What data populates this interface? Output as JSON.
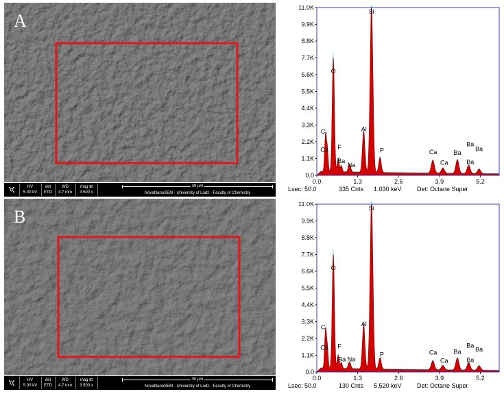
{
  "figure": {
    "panels": [
      {
        "label": "A",
        "sem": {
          "hv_label": "HV",
          "hv": "5.00 kV",
          "det_label": "det",
          "det": "ETD",
          "wd_label": "WD",
          "wd": "4.7 mm",
          "mag_label": "mag ⊞",
          "mag": "3 500 x",
          "scale_bar": "30 µm",
          "caption": "NovaNanoSEM - University of Lodz - Faculty of Chemistry"
        },
        "eds_footer": {
          "lsec": "Lsec: 50.0",
          "cnts": "335 Cnts",
          "kev": "1.030 keV",
          "det": "Det: Octane Super"
        }
      },
      {
        "label": "B",
        "sem": {
          "hv_label": "HV",
          "hv": "5.00 kV",
          "det_label": "det",
          "det": "ETD",
          "wd_label": "WD",
          "wd": "4.7 mm",
          "mag_label": "mag ⊞",
          "mag": "3 500 x",
          "scale_bar": "30 µm",
          "caption": "NovaNanoSEM - University of Lodz - Faculty of Chemistry"
        },
        "eds_footer": {
          "lsec": "Lsec: 50.0",
          "cnts": "130 Cnts",
          "kev": "5.520 keV",
          "det": "Det: Octane Super"
        }
      }
    ],
    "colors": {
      "roi": "#e3161b",
      "spectrum_fill": "#d40000",
      "spectrum_outline": "#35c6d6",
      "axis_frame": "#3a3ad0"
    }
  },
  "chart_data": [
    {
      "type": "area",
      "title": "",
      "xlabel": "",
      "ylabel": "",
      "xlim": [
        0,
        5.8
      ],
      "ylim": [
        0,
        11000
      ],
      "x_ticks": [
        0.0,
        1.3,
        2.6,
        3.9,
        5.2
      ],
      "x_tick_labels": [
        "0.0",
        "1.3",
        "2.6",
        "3.9",
        "5.2"
      ],
      "y_ticks": [
        0,
        1100,
        2200,
        3300,
        4400,
        5500,
        6600,
        7700,
        8800,
        9900,
        11000
      ],
      "y_tick_labels": [
        "0.0",
        "1.1K",
        "2.2K",
        "3.3K",
        "4.4K",
        "5.5K",
        "6.6K",
        "7.7K",
        "8.8K",
        "9.9K",
        "11.0K"
      ],
      "baseline": 250,
      "peaks": [
        {
          "element": "C",
          "kev": 0.28,
          "counts": 2500,
          "width": 0.03
        },
        {
          "element": "Ca",
          "kev": 0.34,
          "counts": 1300,
          "width": 0.025
        },
        {
          "element": "O",
          "kev": 0.525,
          "counts": 7500,
          "width": 0.035
        },
        {
          "element": "F",
          "kev": 0.68,
          "counts": 900,
          "width": 0.03
        },
        {
          "element": "Ba",
          "kev": 0.78,
          "counts": 420,
          "width": 0.03
        },
        {
          "element": "Na",
          "kev": 1.04,
          "counts": 500,
          "width": 0.04
        },
        {
          "element": "Al",
          "kev": 1.49,
          "counts": 2700,
          "width": 0.04
        },
        {
          "element": "Si",
          "kev": 1.74,
          "counts": 10900,
          "width": 0.045
        },
        {
          "element": "P",
          "kev": 2.01,
          "counts": 1000,
          "width": 0.04
        },
        {
          "element": "Ca",
          "kev": 3.69,
          "counts": 850,
          "width": 0.05
        },
        {
          "element": "Ca",
          "kev": 4.01,
          "counts": 350,
          "width": 0.05
        },
        {
          "element": "Ba",
          "kev": 4.47,
          "counts": 900,
          "width": 0.05
        },
        {
          "element": "Ba",
          "kev": 4.83,
          "counts": 550,
          "width": 0.05
        },
        {
          "element": "Ba",
          "kev": 5.16,
          "counts": 300,
          "width": 0.05
        }
      ],
      "labels": [
        {
          "text": "C",
          "kev": 0.2,
          "counts": 2750
        },
        {
          "text": "Ca",
          "kev": 0.24,
          "counts": 1550
        },
        {
          "text": "O",
          "kev": 0.525,
          "counts": 6700
        },
        {
          "text": "F",
          "kev": 0.72,
          "counts": 1700
        },
        {
          "text": "Ba",
          "kev": 0.78,
          "counts": 800
        },
        {
          "text": "Na",
          "kev": 1.1,
          "counts": 550
        },
        {
          "text": "Al",
          "kev": 1.5,
          "counts": 2900
        },
        {
          "text": "Si",
          "kev": 1.74,
          "counts": 10600
        },
        {
          "text": "P",
          "kev": 2.07,
          "counts": 1500
        },
        {
          "text": "Ca",
          "kev": 3.7,
          "counts": 1400
        },
        {
          "text": "Ca",
          "kev": 4.05,
          "counts": 700
        },
        {
          "text": "Ba",
          "kev": 4.47,
          "counts": 1350
        },
        {
          "text": "Ba",
          "kev": 4.88,
          "counts": 1900
        },
        {
          "text": "Ba",
          "kev": 5.16,
          "counts": 1600
        },
        {
          "text": "Ba",
          "kev": 4.88,
          "counts": 750
        }
      ]
    },
    {
      "type": "area",
      "title": "",
      "xlabel": "",
      "ylabel": "",
      "xlim": [
        0,
        5.8
      ],
      "ylim": [
        0,
        11000
      ],
      "x_ticks": [
        0.0,
        1.3,
        2.6,
        3.9,
        5.2
      ],
      "x_tick_labels": [
        "0.0",
        "1.3",
        "2.6",
        "3.9",
        "5.2"
      ],
      "y_ticks": [
        0,
        1100,
        2200,
        3300,
        4400,
        5500,
        6600,
        7700,
        8800,
        9900,
        11000
      ],
      "y_tick_labels": [
        "0.0",
        "1.1K",
        "2.2K",
        "3.3K",
        "4.4K",
        "5.5K",
        "6.6K",
        "7.7K",
        "8.8K",
        "9.9K",
        "11.0K"
      ],
      "baseline": 250,
      "peaks": [
        {
          "element": "C",
          "kev": 0.28,
          "counts": 2600,
          "width": 0.03
        },
        {
          "element": "Ca",
          "kev": 0.34,
          "counts": 1200,
          "width": 0.025
        },
        {
          "element": "O",
          "kev": 0.525,
          "counts": 7500,
          "width": 0.035
        },
        {
          "element": "F",
          "kev": 0.68,
          "counts": 900,
          "width": 0.03
        },
        {
          "element": "Ba",
          "kev": 0.78,
          "counts": 400,
          "width": 0.03
        },
        {
          "element": "Na",
          "kev": 1.04,
          "counts": 450,
          "width": 0.04
        },
        {
          "element": "Al",
          "kev": 1.49,
          "counts": 2900,
          "width": 0.04
        },
        {
          "element": "Si",
          "kev": 1.74,
          "counts": 10900,
          "width": 0.045
        },
        {
          "element": "P",
          "kev": 2.01,
          "counts": 750,
          "width": 0.04
        },
        {
          "element": "Ca",
          "kev": 3.69,
          "counts": 600,
          "width": 0.05
        },
        {
          "element": "Ca",
          "kev": 4.01,
          "counts": 300,
          "width": 0.05
        },
        {
          "element": "Ba",
          "kev": 4.47,
          "counts": 800,
          "width": 0.05
        },
        {
          "element": "Ba",
          "kev": 4.83,
          "counts": 500,
          "width": 0.05
        },
        {
          "element": "Ba",
          "kev": 5.16,
          "counts": 300,
          "width": 0.05
        }
      ],
      "labels": [
        {
          "text": "C",
          "kev": 0.2,
          "counts": 2800
        },
        {
          "text": "Ca",
          "kev": 0.24,
          "counts": 1450
        },
        {
          "text": "O",
          "kev": 0.525,
          "counts": 6700
        },
        {
          "text": "F",
          "kev": 0.72,
          "counts": 1550
        },
        {
          "text": "Ba",
          "kev": 0.8,
          "counts": 700
        },
        {
          "text": "Na",
          "kev": 1.1,
          "counts": 700
        },
        {
          "text": "Al",
          "kev": 1.5,
          "counts": 3000
        },
        {
          "text": "Si",
          "kev": 1.74,
          "counts": 10600
        },
        {
          "text": "P",
          "kev": 2.07,
          "counts": 1000
        },
        {
          "text": "Ca",
          "kev": 3.7,
          "counts": 1150
        },
        {
          "text": "Ca",
          "kev": 4.05,
          "counts": 600
        },
        {
          "text": "Ba",
          "kev": 4.47,
          "counts": 1200
        },
        {
          "text": "Ba",
          "kev": 4.88,
          "counts": 1600
        },
        {
          "text": "Ba",
          "kev": 5.16,
          "counts": 1350
        },
        {
          "text": "Ba",
          "kev": 4.88,
          "counts": 650
        }
      ]
    }
  ]
}
